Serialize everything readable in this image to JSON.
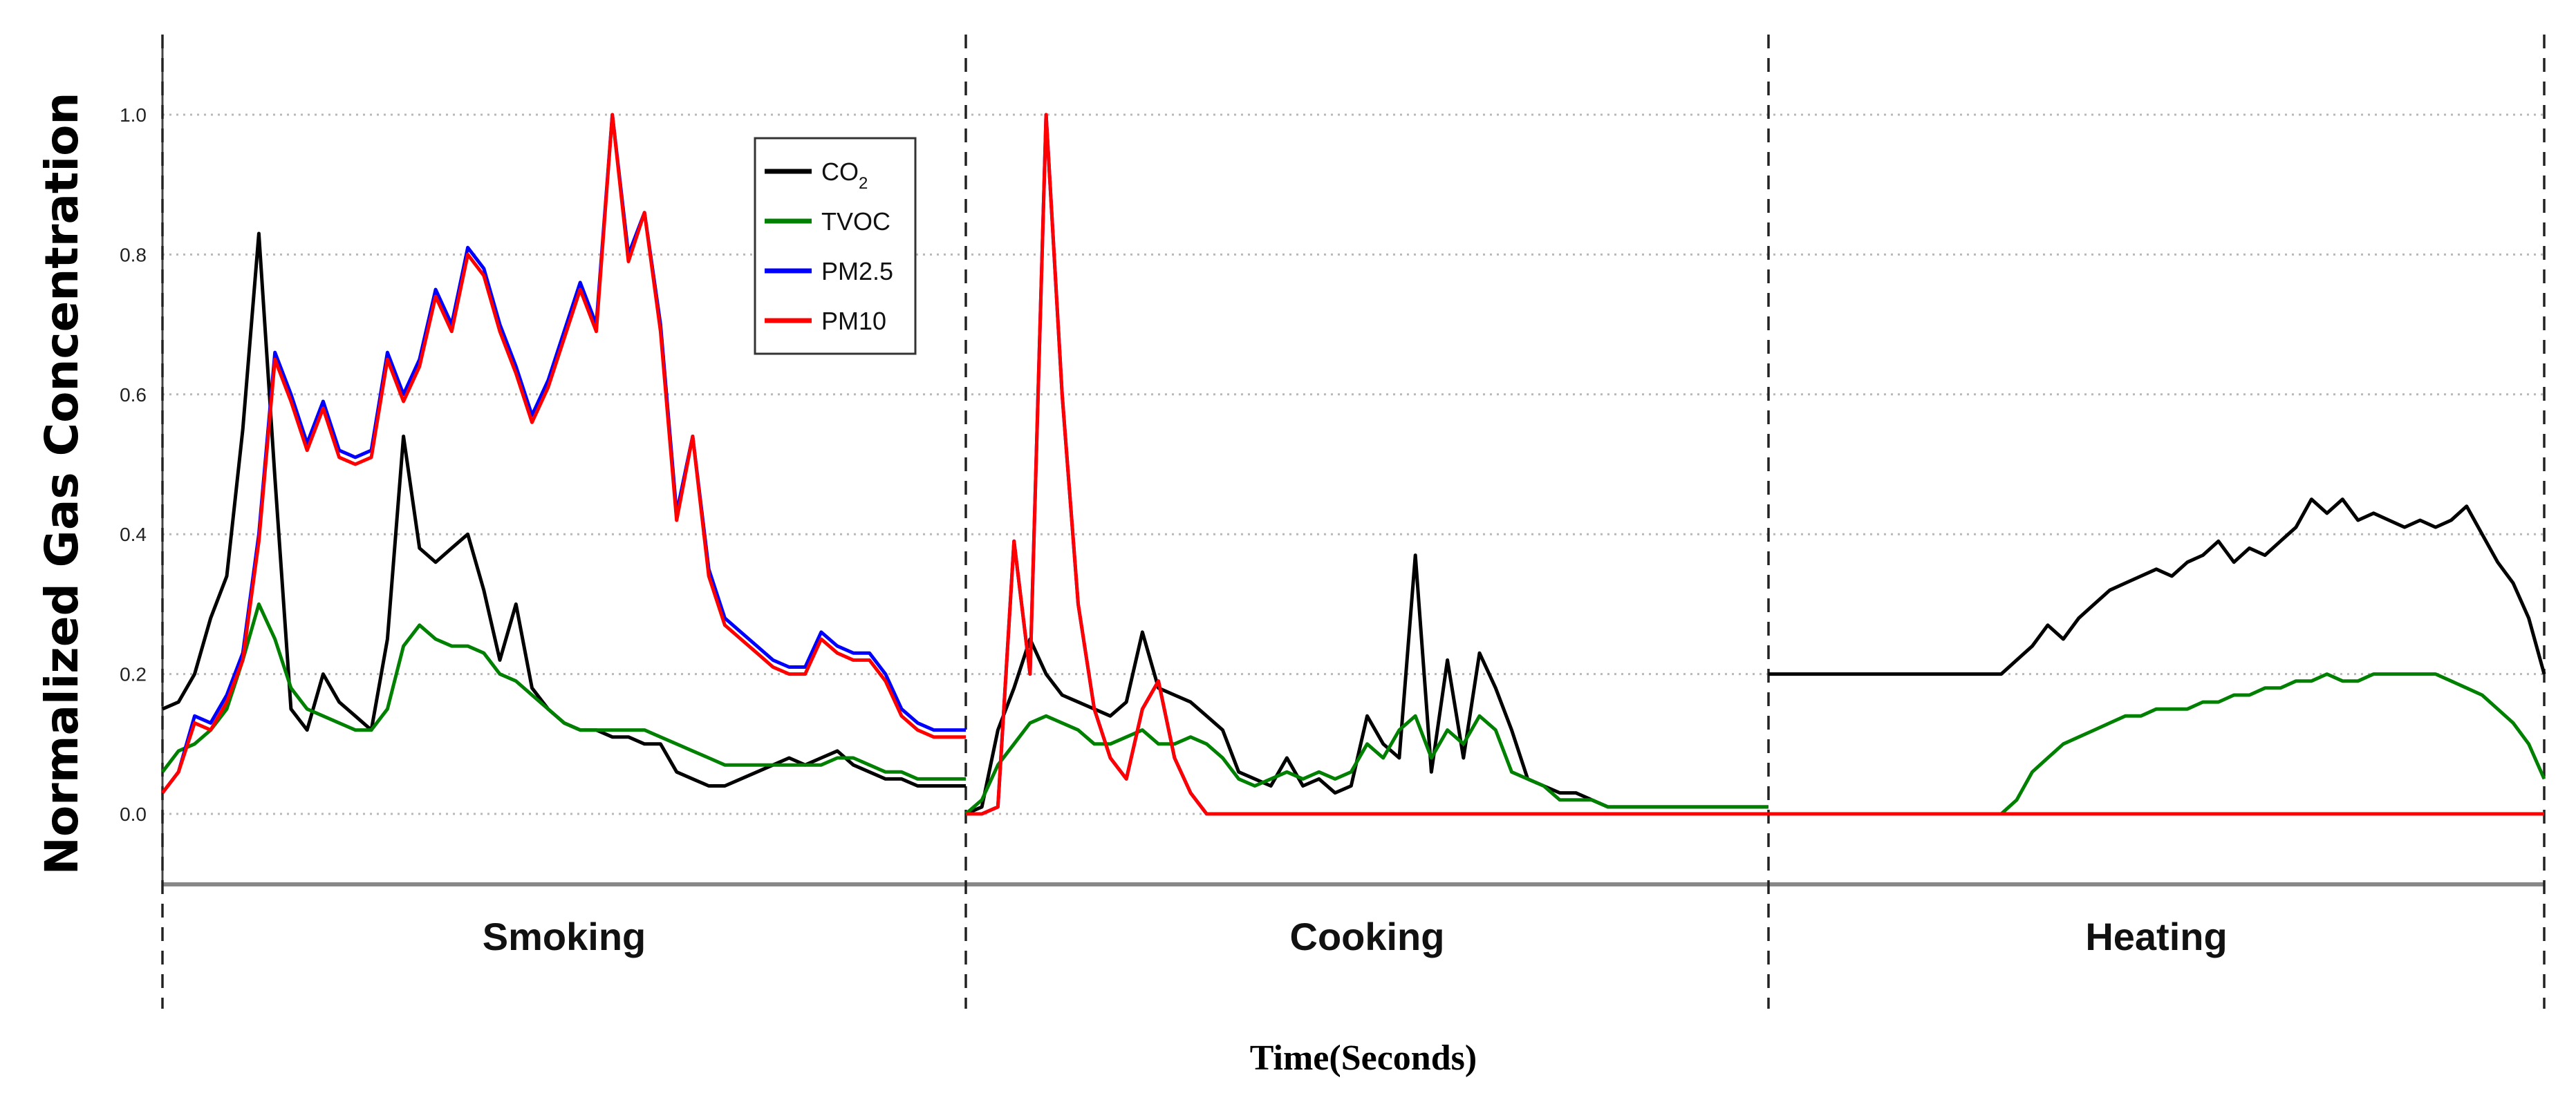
{
  "chart_data": {
    "type": "line",
    "title": "",
    "xlabel": "Time(Seconds)",
    "ylabel": "Normalized Gas Concentration",
    "ylim": [
      -0.1,
      1.1
    ],
    "yticks": [
      "0.0",
      "0.2",
      "0.4",
      "0.6",
      "0.8",
      "1.0"
    ],
    "grid": "horizontal dotted",
    "legend_position": "upper-middle of first panel",
    "panels": [
      {
        "label": "Smoking",
        "x": [
          0,
          2,
          4,
          6,
          8,
          10,
          12,
          14,
          16,
          18,
          20,
          22,
          24,
          26,
          28,
          30,
          32,
          34,
          36,
          38,
          40,
          42,
          44,
          46,
          48,
          50,
          52,
          54,
          56,
          58,
          60,
          62,
          64,
          66,
          68,
          70,
          72,
          74,
          76,
          78,
          80,
          82,
          84,
          86,
          88,
          90,
          92,
          94,
          96,
          98,
          100
        ],
        "series": [
          {
            "name": "CO2",
            "color": "#000000",
            "values": [
              0.15,
              0.16,
              0.2,
              0.28,
              0.34,
              0.55,
              0.83,
              0.48,
              0.15,
              0.12,
              0.2,
              0.16,
              0.14,
              0.12,
              0.25,
              0.54,
              0.38,
              0.36,
              0.38,
              0.4,
              0.32,
              0.22,
              0.3,
              0.18,
              0.15,
              0.13,
              0.12,
              0.12,
              0.11,
              0.11,
              0.1,
              0.1,
              0.06,
              0.05,
              0.04,
              0.04,
              0.05,
              0.06,
              0.07,
              0.08,
              0.07,
              0.08,
              0.09,
              0.07,
              0.06,
              0.05,
              0.05,
              0.04,
              0.04,
              0.04,
              0.04
            ]
          },
          {
            "name": "TVOC",
            "color": "#008000",
            "values": [
              0.06,
              0.09,
              0.1,
              0.12,
              0.15,
              0.22,
              0.3,
              0.25,
              0.18,
              0.15,
              0.14,
              0.13,
              0.12,
              0.12,
              0.15,
              0.24,
              0.27,
              0.25,
              0.24,
              0.24,
              0.23,
              0.2,
              0.19,
              0.17,
              0.15,
              0.13,
              0.12,
              0.12,
              0.12,
              0.12,
              0.12,
              0.11,
              0.1,
              0.09,
              0.08,
              0.07,
              0.07,
              0.07,
              0.07,
              0.07,
              0.07,
              0.07,
              0.08,
              0.08,
              0.07,
              0.06,
              0.06,
              0.05,
              0.05,
              0.05,
              0.05
            ]
          },
          {
            "name": "PM2.5",
            "color": "#0000ff",
            "values": [
              0.03,
              0.06,
              0.14,
              0.13,
              0.17,
              0.23,
              0.4,
              0.66,
              0.6,
              0.53,
              0.59,
              0.52,
              0.51,
              0.52,
              0.66,
              0.6,
              0.65,
              0.75,
              0.7,
              0.81,
              0.78,
              0.7,
              0.64,
              0.57,
              0.62,
              0.69,
              0.76,
              0.7,
              1.0,
              0.8,
              0.86,
              0.7,
              0.43,
              0.54,
              0.35,
              0.28,
              0.26,
              0.24,
              0.22,
              0.21,
              0.21,
              0.26,
              0.24,
              0.23,
              0.23,
              0.2,
              0.15,
              0.13,
              0.12,
              0.12,
              0.12
            ]
          },
          {
            "name": "PM10",
            "color": "#ff0000",
            "values": [
              0.03,
              0.06,
              0.13,
              0.12,
              0.16,
              0.22,
              0.39,
              0.65,
              0.59,
              0.52,
              0.58,
              0.51,
              0.5,
              0.51,
              0.65,
              0.59,
              0.64,
              0.74,
              0.69,
              0.8,
              0.77,
              0.69,
              0.63,
              0.56,
              0.61,
              0.68,
              0.75,
              0.69,
              1.0,
              0.79,
              0.86,
              0.69,
              0.42,
              0.54,
              0.34,
              0.27,
              0.25,
              0.23,
              0.21,
              0.2,
              0.2,
              0.25,
              0.23,
              0.22,
              0.22,
              0.19,
              0.14,
              0.12,
              0.11,
              0.11,
              0.11
            ]
          }
        ]
      },
      {
        "label": "Cooking",
        "x": [
          0,
          2,
          4,
          6,
          8,
          10,
          12,
          14,
          16,
          18,
          20,
          22,
          24,
          26,
          28,
          30,
          32,
          34,
          36,
          38,
          40,
          42,
          44,
          46,
          48,
          50,
          52,
          54,
          56,
          58,
          60,
          62,
          64,
          66,
          68,
          70,
          72,
          74,
          76,
          78,
          80,
          82,
          84,
          86,
          88,
          90,
          92,
          94,
          96,
          98,
          100
        ],
        "series": [
          {
            "name": "CO2",
            "color": "#000000",
            "values": [
              0.0,
              0.01,
              0.12,
              0.18,
              0.25,
              0.2,
              0.17,
              0.16,
              0.15,
              0.14,
              0.16,
              0.26,
              0.18,
              0.17,
              0.16,
              0.14,
              0.12,
              0.06,
              0.05,
              0.04,
              0.08,
              0.04,
              0.05,
              0.03,
              0.04,
              0.14,
              0.1,
              0.08,
              0.37,
              0.06,
              0.22,
              0.08,
              0.23,
              0.18,
              0.12,
              0.05,
              0.04,
              0.03,
              0.03,
              0.02,
              0.01,
              0.01,
              0.01,
              0.01,
              0.01,
              0.01,
              0.01,
              0.01,
              0.01,
              0.01,
              0.01
            ]
          },
          {
            "name": "TVOC",
            "color": "#008000",
            "values": [
              0.0,
              0.02,
              0.07,
              0.1,
              0.13,
              0.14,
              0.13,
              0.12,
              0.1,
              0.1,
              0.11,
              0.12,
              0.1,
              0.1,
              0.11,
              0.1,
              0.08,
              0.05,
              0.04,
              0.05,
              0.06,
              0.05,
              0.06,
              0.05,
              0.06,
              0.1,
              0.08,
              0.12,
              0.14,
              0.08,
              0.12,
              0.1,
              0.14,
              0.12,
              0.06,
              0.05,
              0.04,
              0.02,
              0.02,
              0.02,
              0.01,
              0.01,
              0.01,
              0.01,
              0.01,
              0.01,
              0.01,
              0.01,
              0.01,
              0.01,
              0.01
            ]
          },
          {
            "name": "PM2.5",
            "color": "#0000ff",
            "values": [
              0.0,
              0.0,
              0.01,
              0.39,
              0.2,
              1.0,
              0.6,
              0.3,
              0.15,
              0.08,
              0.05,
              0.15,
              0.19,
              0.08,
              0.03,
              0.0,
              0.0,
              0.0,
              0.0,
              0.0,
              0.0,
              0.0,
              0.0,
              0.0,
              0.0,
              0.0,
              0.0,
              0.0,
              0.0,
              0.0,
              0.0,
              0.0,
              0.0,
              0.0,
              0.0,
              0.0,
              0.0,
              0.0,
              0.0,
              0.0,
              0.0,
              0.0,
              0.0,
              0.0,
              0.0,
              0.0,
              0.0,
              0.0,
              0.0,
              0.0,
              0.0
            ]
          },
          {
            "name": "PM10",
            "color": "#ff0000",
            "values": [
              0.0,
              0.0,
              0.01,
              0.39,
              0.2,
              1.0,
              0.6,
              0.3,
              0.15,
              0.08,
              0.05,
              0.15,
              0.19,
              0.08,
              0.03,
              0.0,
              0.0,
              0.0,
              0.0,
              0.0,
              0.0,
              0.0,
              0.0,
              0.0,
              0.0,
              0.0,
              0.0,
              0.0,
              0.0,
              0.0,
              0.0,
              0.0,
              0.0,
              0.0,
              0.0,
              0.0,
              0.0,
              0.0,
              0.0,
              0.0,
              0.0,
              0.0,
              0.0,
              0.0,
              0.0,
              0.0,
              0.0,
              0.0,
              0.0,
              0.0,
              0.0
            ]
          }
        ]
      },
      {
        "label": "Heating",
        "x": [
          0,
          2,
          4,
          6,
          8,
          10,
          12,
          14,
          16,
          18,
          20,
          22,
          24,
          26,
          28,
          30,
          32,
          34,
          36,
          38,
          40,
          42,
          44,
          46,
          48,
          50,
          52,
          54,
          56,
          58,
          60,
          62,
          64,
          66,
          68,
          70,
          72,
          74,
          76,
          78,
          80,
          82,
          84,
          86,
          88,
          90,
          92,
          94,
          96,
          98,
          100
        ],
        "series": [
          {
            "name": "CO2",
            "color": "#000000",
            "values": [
              0.2,
              0.2,
              0.2,
              0.2,
              0.2,
              0.2,
              0.2,
              0.2,
              0.2,
              0.2,
              0.2,
              0.2,
              0.2,
              0.2,
              0.2,
              0.2,
              0.22,
              0.24,
              0.27,
              0.25,
              0.28,
              0.3,
              0.32,
              0.33,
              0.34,
              0.35,
              0.34,
              0.36,
              0.37,
              0.39,
              0.36,
              0.38,
              0.37,
              0.39,
              0.41,
              0.45,
              0.43,
              0.45,
              0.42,
              0.43,
              0.42,
              0.41,
              0.42,
              0.41,
              0.42,
              0.44,
              0.4,
              0.36,
              0.33,
              0.28,
              0.2
            ]
          },
          {
            "name": "TVOC",
            "color": "#008000",
            "values": [
              0.0,
              0.0,
              0.0,
              0.0,
              0.0,
              0.0,
              0.0,
              0.0,
              0.0,
              0.0,
              0.0,
              0.0,
              0.0,
              0.0,
              0.0,
              0.0,
              0.02,
              0.06,
              0.08,
              0.1,
              0.11,
              0.12,
              0.13,
              0.14,
              0.14,
              0.15,
              0.15,
              0.15,
              0.16,
              0.16,
              0.17,
              0.17,
              0.18,
              0.18,
              0.19,
              0.19,
              0.2,
              0.19,
              0.19,
              0.2,
              0.2,
              0.2,
              0.2,
              0.2,
              0.19,
              0.18,
              0.17,
              0.15,
              0.13,
              0.1,
              0.05
            ]
          },
          {
            "name": "PM2.5",
            "color": "#0000ff",
            "values": [
              0.0,
              0.0,
              0.0,
              0.0,
              0.0,
              0.0,
              0.0,
              0.0,
              0.0,
              0.0,
              0.0,
              0.0,
              0.0,
              0.0,
              0.0,
              0.0,
              0.0,
              0.0,
              0.0,
              0.0,
              0.0,
              0.0,
              0.0,
              0.0,
              0.0,
              0.0,
              0.0,
              0.0,
              0.0,
              0.0,
              0.0,
              0.0,
              0.0,
              0.0,
              0.0,
              0.0,
              0.0,
              0.0,
              0.0,
              0.0,
              0.0,
              0.0,
              0.0,
              0.0,
              0.0,
              0.0,
              0.0,
              0.0,
              0.0,
              0.0,
              0.0
            ]
          },
          {
            "name": "PM10",
            "color": "#ff0000",
            "values": [
              0.0,
              0.0,
              0.0,
              0.0,
              0.0,
              0.0,
              0.0,
              0.0,
              0.0,
              0.0,
              0.0,
              0.0,
              0.0,
              0.0,
              0.0,
              0.0,
              0.0,
              0.0,
              0.0,
              0.0,
              0.0,
              0.0,
              0.0,
              0.0,
              0.0,
              0.0,
              0.0,
              0.0,
              0.0,
              0.0,
              0.0,
              0.0,
              0.0,
              0.0,
              0.0,
              0.0,
              0.0,
              0.0,
              0.0,
              0.0,
              0.0,
              0.0,
              0.0,
              0.0,
              0.0,
              0.0,
              0.0,
              0.0,
              0.0,
              0.0,
              0.0
            ]
          }
        ]
      }
    ],
    "legend": [
      {
        "label": "CO",
        "subscript": "2",
        "color": "#000000"
      },
      {
        "label": "TVOC",
        "subscript": "",
        "color": "#008000"
      },
      {
        "label": "PM2.5",
        "subscript": "",
        "color": "#0000ff"
      },
      {
        "label": "PM10",
        "subscript": "",
        "color": "#ff0000"
      }
    ]
  }
}
